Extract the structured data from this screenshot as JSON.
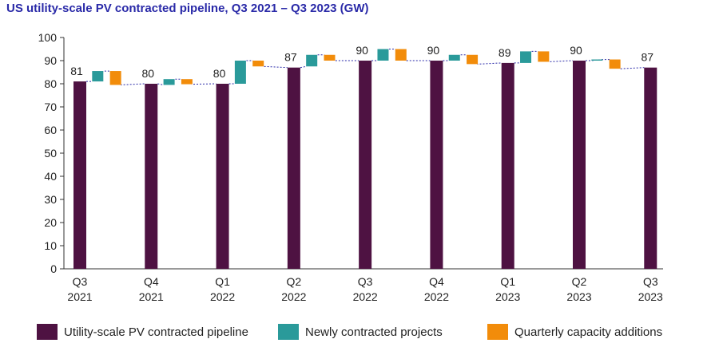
{
  "chart_data": {
    "type": "bar",
    "title": "US utility-scale PV contracted pipeline, Q3 2021 – Q3 2023 (GW)",
    "ylim": [
      0,
      100
    ],
    "yticks": [
      0,
      10,
      20,
      30,
      40,
      50,
      60,
      70,
      80,
      90,
      100
    ],
    "categories": [
      [
        "Q3",
        "2021"
      ],
      [
        "Q4",
        "2021"
      ],
      [
        "Q1",
        "2022"
      ],
      [
        "Q2",
        "2022"
      ],
      [
        "Q3",
        "2022"
      ],
      [
        "Q4",
        "2022"
      ],
      [
        "Q1",
        "2023"
      ],
      [
        "Q2",
        "2023"
      ],
      [
        "Q3",
        "2023"
      ]
    ],
    "series": [
      {
        "name": "Utility-scale PV contracted pipeline",
        "color": "#4e1242",
        "values": [
          81,
          80,
          80,
          87,
          90,
          90,
          89,
          90,
          87
        ]
      },
      {
        "name": "Newly contracted projects",
        "color": "#2a9a9a",
        "ranges": [
          [
            81,
            85.5
          ],
          [
            79.5,
            82
          ],
          [
            80,
            90
          ],
          [
            87.5,
            92.5
          ],
          [
            90,
            95
          ],
          [
            90,
            92.5
          ],
          [
            89,
            94
          ],
          [
            90,
            90.5
          ]
        ]
      },
      {
        "name": "Quarterly capacity additions",
        "color": "#f28c0a",
        "ranges": [
          [
            79.5,
            85.5
          ],
          [
            79.8,
            82
          ],
          [
            87.5,
            90
          ],
          [
            90,
            92.5
          ],
          [
            90,
            95
          ],
          [
            88.5,
            92.5
          ],
          [
            89.5,
            94
          ],
          [
            86.5,
            90.5
          ]
        ]
      }
    ],
    "data_labels": [
      81,
      80,
      80,
      87,
      90,
      90,
      89,
      90,
      87
    ],
    "legend_position": "bottom",
    "grid": false
  }
}
